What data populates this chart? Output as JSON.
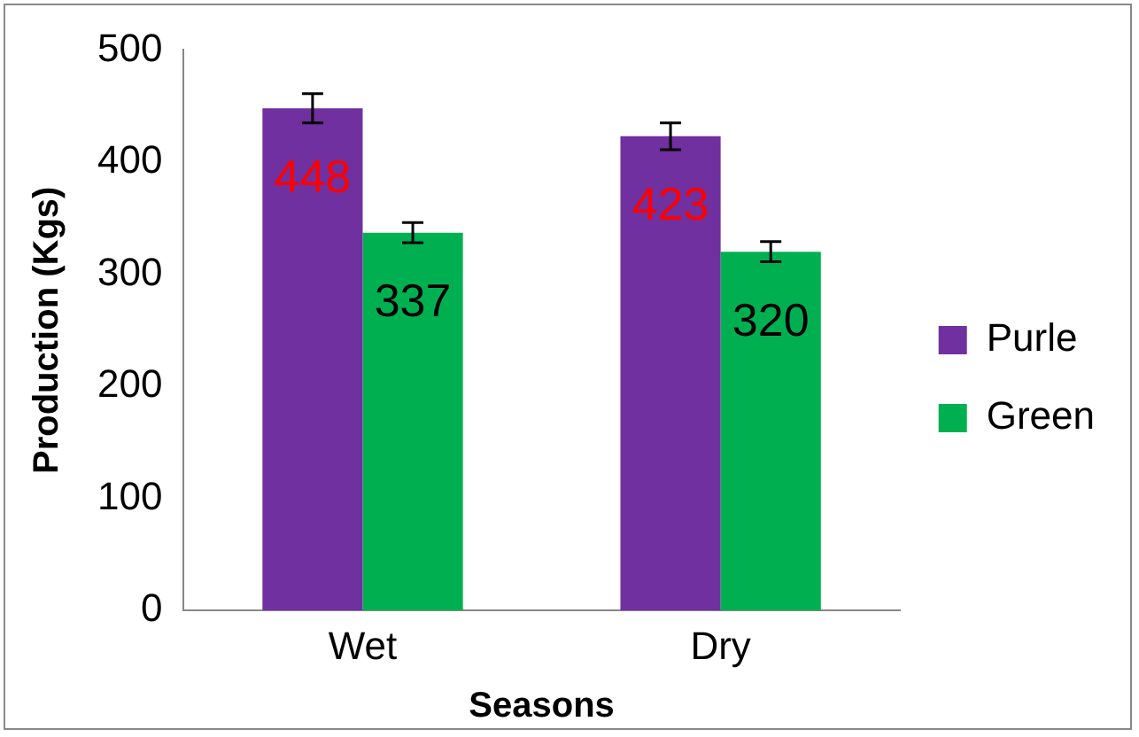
{
  "chart_data": {
    "type": "bar",
    "xlabel": "Seasons",
    "ylabel": "Production (Kgs)",
    "categories": [
      "Wet",
      "Dry"
    ],
    "series": [
      {
        "name": "Purle",
        "color": "#7030a0",
        "values": [
          448,
          423
        ],
        "errors": [
          13,
          12
        ]
      },
      {
        "name": "Green",
        "color": "#00b050",
        "values": [
          337,
          320
        ],
        "errors": [
          9,
          9
        ]
      }
    ],
    "ylim": [
      0,
      500
    ],
    "yticks": [
      0,
      100,
      200,
      300,
      400,
      500
    ],
    "grid": false,
    "legend": "right",
    "data_labels": true
  }
}
